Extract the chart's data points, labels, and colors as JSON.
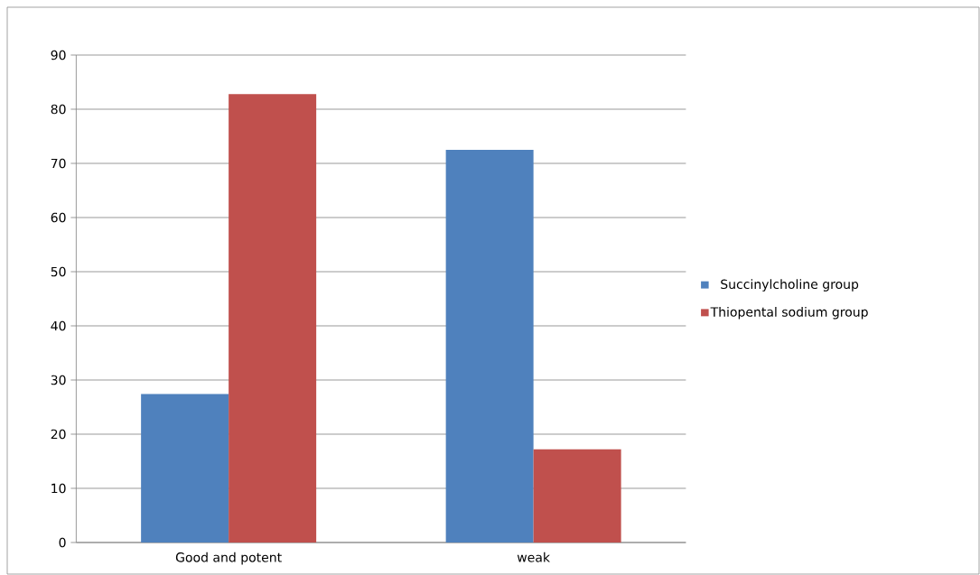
{
  "chart_data": {
    "type": "bar",
    "categories": [
      "Good and potent",
      "weak"
    ],
    "series": [
      {
        "name": "Succinylcholine group",
        "color": "#4f81bd",
        "values": [
          27.4,
          72.5
        ]
      },
      {
        "name": "Thiopental sodium group",
        "color": "#c0504d",
        "values": [
          82.8,
          17.2
        ]
      }
    ],
    "ylim": [
      0,
      90
    ],
    "yticks": [
      0,
      10,
      20,
      30,
      40,
      50,
      60,
      70,
      80,
      90
    ],
    "grid": "y",
    "legend": "right"
  }
}
